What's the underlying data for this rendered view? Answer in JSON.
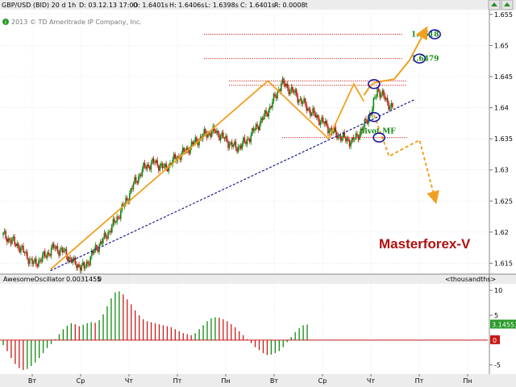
{
  "header": {
    "symbol": "GBP/USD (BID) 20 d 1h",
    "date": "D: 03.12.13 17:00",
    "open": "O: 1.6401s",
    "high": "H: 1.6406s",
    "low": "L: 1.6398s",
    "close": "C: 1.6401s",
    "range": "R: 0.0008t",
    "copyright": "2013 © TD Ameritrade IP Company, Inc."
  },
  "oscillator": {
    "name": "AwesomeOscillator",
    "value": "0.0031455",
    "second_value": "0",
    "scale_unit": "<thousandths>",
    "current_label": "3.14553",
    "zero_label": "0"
  },
  "branding": {
    "name": "Masterforex-V"
  },
  "colors": {
    "up": "#108a10",
    "down": "#c81818",
    "zigzag": "#f0a020",
    "trendline": "#1a1a8c",
    "level": "#cc2020",
    "level_text": "#128a12",
    "circle": "#1a1a9c"
  },
  "chart_data": [
    {
      "type": "candlestick",
      "title": "",
      "yrange": [
        1.6135,
        1.6555
      ],
      "yticks": [
        "1.655",
        "1.65",
        "1.645",
        "1.64",
        "1.635",
        "1.63",
        "1.625",
        "1.62",
        "1.615"
      ],
      "yticks_values": [
        1.655,
        1.65,
        1.645,
        1.64,
        1.635,
        1.63,
        1.625,
        1.62,
        1.615
      ],
      "xticks": [
        "Вт",
        "Ср",
        "Чт",
        "Пт",
        "Пн",
        "Вт",
        "Ср",
        "Чт",
        "Пт",
        "Пн"
      ],
      "bars": 96,
      "price_path": [
        [
          0,
          1.6195
        ],
        [
          3,
          1.6178
        ],
        [
          6,
          1.6148
        ],
        [
          8,
          1.616
        ],
        [
          10,
          1.6175
        ],
        [
          12,
          1.6168
        ],
        [
          14,
          1.615
        ],
        [
          16,
          1.6142
        ],
        [
          18,
          1.617
        ],
        [
          20,
          1.619
        ],
        [
          22,
          1.6215
        ],
        [
          24,
          1.6245
        ],
        [
          26,
          1.628
        ],
        [
          28,
          1.6305
        ],
        [
          30,
          1.6312
        ],
        [
          32,
          1.6302
        ],
        [
          34,
          1.6318
        ],
        [
          36,
          1.633
        ],
        [
          38,
          1.6345
        ],
        [
          40,
          1.6358
        ],
        [
          42,
          1.6362
        ],
        [
          44,
          1.6348
        ],
        [
          46,
          1.6335
        ],
        [
          48,
          1.6345
        ],
        [
          50,
          1.6368
        ],
        [
          52,
          1.639
        ],
        [
          54,
          1.642
        ],
        [
          55,
          1.644
        ],
        [
          57,
          1.6428
        ],
        [
          59,
          1.641
        ],
        [
          61,
          1.6392
        ],
        [
          63,
          1.6378
        ],
        [
          65,
          1.6362
        ],
        [
          67,
          1.6352
        ],
        [
          69,
          1.6345
        ],
        [
          71,
          1.6365
        ],
        [
          73,
          1.6398
        ],
        [
          74,
          1.643
        ],
        [
          75,
          1.642
        ],
        [
          76,
          1.6408
        ],
        [
          77,
          1.6401
        ]
      ],
      "levels": [
        {
          "value": 1.6518,
          "label": "1.6518"
        },
        {
          "value": 1.6479,
          "label": "1.6479"
        },
        {
          "value": 1.6443,
          "label": ""
        },
        {
          "value": 1.6436,
          "label": ""
        },
        {
          "value": 1.6352,
          "label": "pivot MF"
        }
      ],
      "trendline": [
        [
          9,
          1.6138
        ],
        [
          81,
          1.6413
        ]
      ],
      "zigzag": [
        [
          9,
          1.614
        ],
        [
          52,
          1.6443
        ],
        [
          64,
          1.635
        ],
        [
          69,
          1.6438
        ],
        [
          71,
          1.641
        ]
      ],
      "forecast_up": [
        [
          71,
          1.642
        ],
        [
          72,
          1.6432
        ],
        [
          73,
          1.644
        ],
        [
          77,
          1.6446
        ],
        [
          80,
          1.6476
        ],
        [
          83,
          1.6522
        ]
      ],
      "forecast_down": [
        [
          73,
          1.6388
        ],
        [
          76,
          1.6322
        ],
        [
          82,
          1.6348
        ],
        [
          85,
          1.6255
        ]
      ],
      "circles": [
        [
          73,
          1.6438
        ],
        [
          82,
          1.6479
        ],
        [
          85,
          1.6518
        ],
        [
          73,
          1.6385
        ],
        [
          74,
          1.6352
        ]
      ]
    },
    {
      "type": "bar",
      "title": "AwesomeOscillator",
      "yrange": [
        -6.5,
        11
      ],
      "yticks": [
        "10",
        "5",
        "0",
        "-5"
      ],
      "yticks_values": [
        10,
        5,
        0,
        -5
      ],
      "values": [
        -1.0,
        -2.2,
        -3.6,
        -4.8,
        -5.6,
        -6.0,
        -5.8,
        -5.2,
        -4.5,
        -3.6,
        -2.6,
        -1.6,
        -0.8,
        0.2,
        1.2,
        2.2,
        2.9,
        3.4,
        3.2,
        2.8,
        3.1,
        3.4,
        3.6,
        3.5,
        4.0,
        5.2,
        6.8,
        8.4,
        9.6,
        9.8,
        9.2,
        8.2,
        7.2,
        6.0,
        5.0,
        4.2,
        3.8,
        3.6,
        3.4,
        3.2,
        3.0,
        2.8,
        2.6,
        2.2,
        1.8,
        1.4,
        1.2,
        1.0,
        1.4,
        2.2,
        3.0,
        3.8,
        4.4,
        4.6,
        4.5,
        4.2,
        3.8,
        3.2,
        2.6,
        1.8,
        1.0,
        0.2,
        -0.6,
        -1.4,
        -2.0,
        -2.6,
        -3.0,
        -2.9,
        -2.6,
        -2.2,
        -1.4,
        -0.4,
        0.6,
        1.6,
        2.4,
        3.0,
        3.1455
      ]
    }
  ]
}
